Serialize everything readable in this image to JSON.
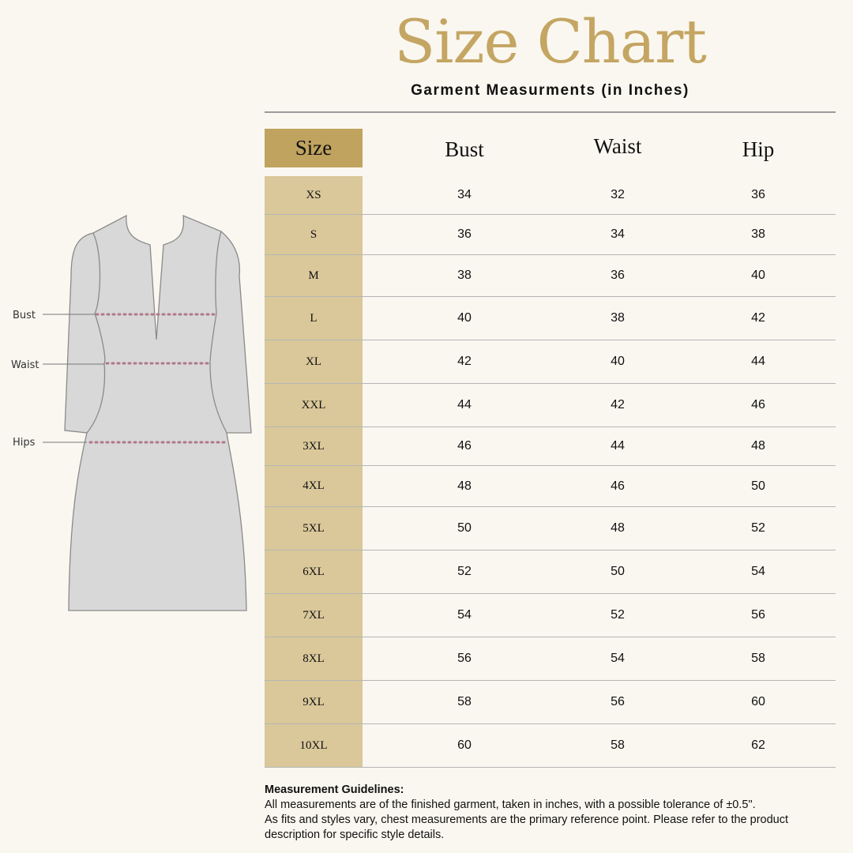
{
  "title": "Size Chart",
  "subtitle": "Garment Measurments (in Inches)",
  "colors": {
    "accent": "#c4a562",
    "size_header": "#c0a35f",
    "size_column": "#dac89a",
    "background": "#faf7f0",
    "dots": "#b07888"
  },
  "diagram": {
    "labels": [
      "Bust",
      "Waist",
      "Hips"
    ]
  },
  "table": {
    "headers": [
      "Size",
      "Bust",
      "Waist",
      "Hip"
    ],
    "rows": [
      [
        "XS",
        "34",
        "32",
        "36"
      ],
      [
        "S",
        "36",
        "34",
        "38"
      ],
      [
        "M",
        "38",
        "36",
        "40"
      ],
      [
        "L",
        "40",
        "38",
        "42"
      ],
      [
        "XL",
        "42",
        "40",
        "44"
      ],
      [
        "XXL",
        "44",
        "42",
        "46"
      ],
      [
        "3XL",
        "46",
        "44",
        "48"
      ],
      [
        "4XL",
        "48",
        "46",
        "50"
      ],
      [
        "5XL",
        "50",
        "48",
        "52"
      ],
      [
        "6XL",
        "52",
        "50",
        "54"
      ],
      [
        "7XL",
        "54",
        "52",
        "56"
      ],
      [
        "8XL",
        "56",
        "54",
        "58"
      ],
      [
        "9XL",
        "58",
        "56",
        "60"
      ],
      [
        "10XL",
        "60",
        "58",
        "62"
      ]
    ]
  },
  "guidelines": {
    "heading": "Measurement Guidelines:",
    "line1": "All measurements are of the finished garment, taken in inches, with a possible tolerance of ±0.5\".",
    "line2": "As fits and styles vary, chest measurements are the primary reference point. Please refer to the product description for specific style details."
  }
}
